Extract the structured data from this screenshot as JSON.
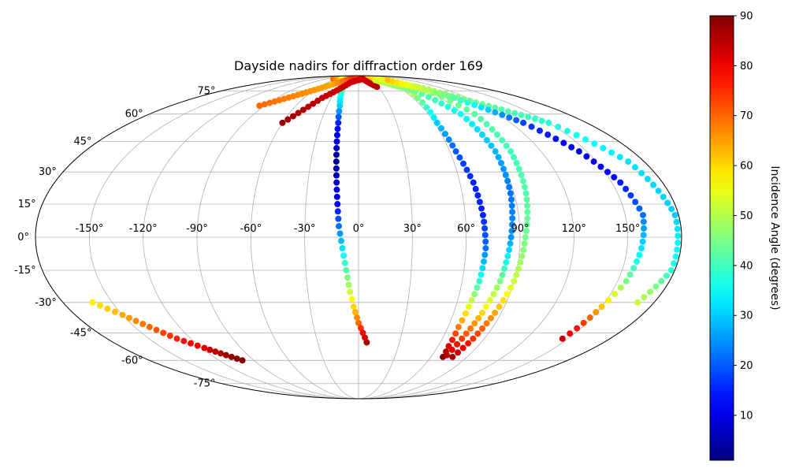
{
  "chart_data": {
    "type": "scatter",
    "projection": "mollweide",
    "title": "Dayside nadirs for diffraction order 169",
    "x_tick_labels": [
      "-150°",
      "-120°",
      "-90°",
      "-60°",
      "-30°",
      "0°",
      "30°",
      "60°",
      "90°",
      "120°",
      "150°"
    ],
    "x_ticks": [
      -150,
      -120,
      -90,
      -60,
      -30,
      0,
      30,
      60,
      90,
      120,
      150
    ],
    "y_tick_labels": [
      "-75°",
      "-60°",
      "-45°",
      "-30°",
      "-15°",
      "0°",
      "15°",
      "30°",
      "45°",
      "60°",
      "75°"
    ],
    "y_ticks": [
      -75,
      -60,
      -45,
      -30,
      -15,
      0,
      15,
      30,
      45,
      60,
      75
    ],
    "xlim": [
      -180,
      180
    ],
    "ylim": [
      -90,
      90
    ],
    "grid": true,
    "colormap": "jet",
    "colorbar": {
      "label": "Incidence Angle (degrees)",
      "range": [
        1,
        90
      ],
      "tick_labels": [
        "10",
        "20",
        "30",
        "40",
        "50",
        "60",
        "70",
        "80",
        "90"
      ],
      "ticks": [
        10,
        20,
        30,
        40,
        50,
        60,
        70,
        80,
        90
      ]
    },
    "series": [
      {
        "points": [
          {
            "lon": -68,
            "lat": 85,
            "inc": 70
          },
          {
            "lon": -52,
            "lat": 86,
            "inc": 62
          },
          {
            "lon": -33,
            "lat": 83,
            "inc": 52
          },
          {
            "lon": -22,
            "lat": 75,
            "inc": 40
          },
          {
            "lon": -18,
            "lat": 65,
            "inc": 30
          },
          {
            "lon": -16,
            "lat": 55,
            "inc": 15
          },
          {
            "lon": -15,
            "lat": 45,
            "inc": 8
          },
          {
            "lon": -14,
            "lat": 35,
            "inc": 3
          },
          {
            "lon": -13,
            "lat": 25,
            "inc": 6
          },
          {
            "lon": -12,
            "lat": 15,
            "inc": 12
          },
          {
            "lon": -11,
            "lat": 5,
            "inc": 22
          },
          {
            "lon": -9,
            "lat": -5,
            "inc": 32
          },
          {
            "lon": -7,
            "lat": -15,
            "inc": 42
          },
          {
            "lon": -5,
            "lat": -25,
            "inc": 52
          },
          {
            "lon": -3,
            "lat": -32,
            "inc": 60
          },
          {
            "lon": 0,
            "lat": -40,
            "inc": 70
          },
          {
            "lon": 3,
            "lat": -45,
            "inc": 79
          },
          {
            "lon": 6,
            "lat": -50,
            "inc": 86
          }
        ]
      },
      {
        "points": [
          {
            "lon": 0,
            "lat": 84,
            "inc": 81
          },
          {
            "lon": 25,
            "lat": 87,
            "inc": 78
          },
          {
            "lon": 60,
            "lat": 86,
            "inc": 68
          },
          {
            "lon": 70,
            "lat": 80,
            "inc": 58
          },
          {
            "lon": 65,
            "lat": 70,
            "inc": 45
          },
          {
            "lon": 62,
            "lat": 55,
            "inc": 30
          },
          {
            "lon": 64,
            "lat": 40,
            "inc": 20
          },
          {
            "lon": 68,
            "lat": 25,
            "inc": 15
          },
          {
            "lon": 70,
            "lat": 10,
            "inc": 15
          },
          {
            "lon": 71,
            "lat": -5,
            "inc": 22
          },
          {
            "lon": 70,
            "lat": -20,
            "inc": 38
          },
          {
            "lon": 68,
            "lat": -32,
            "inc": 55
          },
          {
            "lon": 67,
            "lat": -42,
            "inc": 68
          },
          {
            "lon": 68,
            "lat": -52,
            "inc": 82
          },
          {
            "lon": 70,
            "lat": -58,
            "inc": 89
          }
        ]
      },
      {
        "points": [
          {
            "lon": -95,
            "lat": 65,
            "inc": 70
          },
          {
            "lon": -45,
            "lat": 80,
            "inc": 64
          },
          {
            "lon": -15,
            "lat": 88,
            "inc": 76
          },
          {
            "lon": 30,
            "lat": 87,
            "inc": 62
          },
          {
            "lon": 90,
            "lat": 78,
            "inc": 50
          },
          {
            "lon": 150,
            "lat": 55,
            "inc": 38
          },
          {
            "lon": 170,
            "lat": 35,
            "inc": 32
          },
          {
            "lon": 178,
            "lat": 10,
            "inc": 30
          },
          {
            "lon": 178,
            "lat": -15,
            "inc": 38
          },
          {
            "lon": 170,
            "lat": -30,
            "inc": 52
          }
        ]
      },
      {
        "points": [
          {
            "lon": -162,
            "lat": -30,
            "inc": 58
          },
          {
            "lon": -150,
            "lat": -36,
            "inc": 64
          },
          {
            "lon": -140,
            "lat": -42,
            "inc": 70
          },
          {
            "lon": -130,
            "lat": -48,
            "inc": 76
          },
          {
            "lon": -118,
            "lat": -53,
            "inc": 82
          },
          {
            "lon": -108,
            "lat": -57,
            "inc": 87
          },
          {
            "lon": -100,
            "lat": -60,
            "inc": 90
          }
        ]
      },
      {
        "points": [
          {
            "lon": -60,
            "lat": 55,
            "inc": 88
          },
          {
            "lon": -40,
            "lat": 70,
            "inc": 84
          },
          {
            "lon": -15,
            "lat": 82,
            "inc": 83
          },
          {
            "lon": 10,
            "lat": 86,
            "inc": 82
          },
          {
            "lon": 28,
            "lat": 78,
            "inc": 85
          }
        ]
      },
      {
        "points": [
          {
            "lon": 40,
            "lat": 84,
            "inc": 52
          },
          {
            "lon": 75,
            "lat": 75,
            "inc": 44
          },
          {
            "lon": 88,
            "lat": 60,
            "inc": 35
          },
          {
            "lon": 90,
            "lat": 40,
            "inc": 28
          },
          {
            "lon": 88,
            "lat": 20,
            "inc": 22
          },
          {
            "lon": 85,
            "lat": 0,
            "inc": 25
          },
          {
            "lon": 82,
            "lat": -20,
            "inc": 45
          },
          {
            "lon": 78,
            "lat": -35,
            "inc": 60
          },
          {
            "lon": 74,
            "lat": -48,
            "inc": 74
          },
          {
            "lon": 72,
            "lat": -57,
            "inc": 85
          }
        ]
      },
      {
        "points": [
          {
            "lon": 55,
            "lat": 85,
            "inc": 55
          },
          {
            "lon": 90,
            "lat": 76,
            "inc": 48
          },
          {
            "lon": 100,
            "lat": 60,
            "inc": 42
          },
          {
            "lon": 100,
            "lat": 40,
            "inc": 40
          },
          {
            "lon": 97,
            "lat": 20,
            "inc": 42
          },
          {
            "lon": 93,
            "lat": 0,
            "inc": 44
          },
          {
            "lon": 90,
            "lat": -20,
            "inc": 52
          },
          {
            "lon": 86,
            "lat": -35,
            "inc": 64
          },
          {
            "lon": 82,
            "lat": -48,
            "inc": 75
          },
          {
            "lon": 78,
            "lat": -58,
            "inc": 86
          }
        ]
      },
      {
        "points": [
          {
            "lon": 70,
            "lat": 84,
            "inc": 62
          },
          {
            "lon": 105,
            "lat": 70,
            "inc": 42
          },
          {
            "lon": 130,
            "lat": 55,
            "inc": 18
          },
          {
            "lon": 145,
            "lat": 40,
            "inc": 10
          },
          {
            "lon": 155,
            "lat": 25,
            "inc": 14
          },
          {
            "lon": 160,
            "lat": 10,
            "inc": 22
          },
          {
            "lon": 158,
            "lat": -5,
            "inc": 32
          },
          {
            "lon": 155,
            "lat": -20,
            "inc": 45
          },
          {
            "lon": 150,
            "lat": -32,
            "inc": 62
          },
          {
            "lon": 148,
            "lat": -40,
            "inc": 74
          },
          {
            "lon": 146,
            "lat": -48,
            "inc": 84
          }
        ]
      }
    ]
  }
}
